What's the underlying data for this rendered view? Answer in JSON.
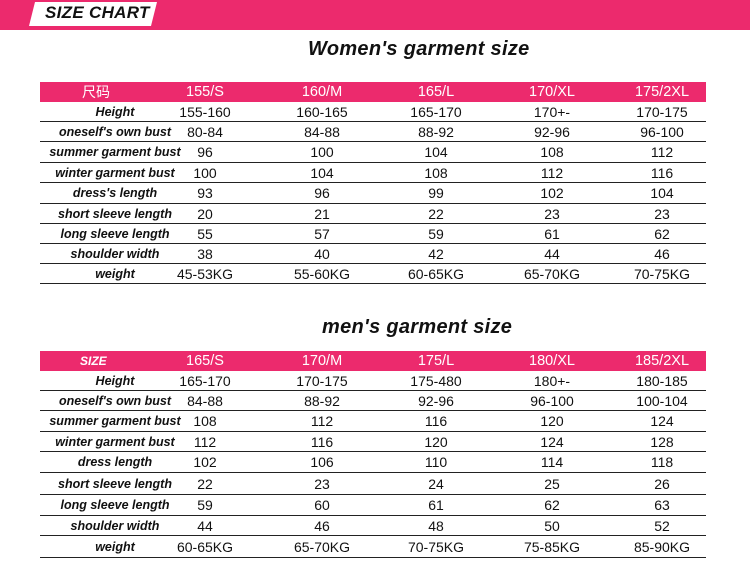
{
  "banner": {
    "title": "SIZE CHART"
  },
  "women": {
    "title": "Women's garment size",
    "header": {
      "label": "尺码",
      "sizes": [
        "155/S",
        "160/M",
        "165/L",
        "170/XL",
        "175/2XL"
      ]
    },
    "rows": [
      {
        "label": "Height",
        "values": [
          "155-160",
          "160-165",
          "165-170",
          "170+-",
          "170-175"
        ]
      },
      {
        "label": "oneself's own bust",
        "values": [
          "80-84",
          "84-88",
          "88-92",
          "92-96",
          "96-100"
        ]
      },
      {
        "label": "summer garment bust",
        "values": [
          "96",
          "100",
          "104",
          "108",
          "112"
        ]
      },
      {
        "label": "winter garment bust",
        "values": [
          "100",
          "104",
          "108",
          "112",
          "116"
        ]
      },
      {
        "label": "dress's length",
        "values": [
          "93",
          "96",
          "99",
          "102",
          "104"
        ]
      },
      {
        "label": "short sleeve length",
        "values": [
          "20",
          "21",
          "22",
          "23",
          "23"
        ]
      },
      {
        "label": "long sleeve length",
        "values": [
          "55",
          "57",
          "59",
          "61",
          "62"
        ]
      },
      {
        "label": "shoulder width",
        "values": [
          "38",
          "40",
          "42",
          "44",
          "46"
        ]
      },
      {
        "label": "weight",
        "values": [
          "45-53KG",
          "55-60KG",
          "60-65KG",
          "65-70KG",
          "70-75KG"
        ]
      }
    ]
  },
  "men": {
    "title": "men's garment size",
    "header": {
      "label": "SIZE",
      "sizes": [
        "165/S",
        "170/M",
        "175/L",
        "180/XL",
        "185/2XL"
      ]
    },
    "rows": [
      {
        "label": "Height",
        "values": [
          "165-170",
          "170-175",
          "175-480",
          "180+-",
          "180-185"
        ]
      },
      {
        "label": "oneself's own bust",
        "values": [
          "84-88",
          "88-92",
          "92-96",
          "96-100",
          "100-104"
        ]
      },
      {
        "label": "summer garment bust",
        "values": [
          "108",
          "112",
          "116",
          "120",
          "124"
        ]
      },
      {
        "label": "winter garment bust",
        "values": [
          "112",
          "116",
          "120",
          "124",
          "128"
        ]
      },
      {
        "label": "dress length",
        "values": [
          "102",
          "106",
          "110",
          "114",
          "118"
        ]
      },
      {
        "label": "short sleeve length",
        "values": [
          "22",
          "23",
          "24",
          "25",
          "26"
        ]
      },
      {
        "label": "long sleeve length",
        "values": [
          "59",
          "60",
          "61",
          "62",
          "63"
        ]
      },
      {
        "label": "shoulder width",
        "values": [
          "44",
          "46",
          "48",
          "50",
          "52"
        ]
      },
      {
        "label": "weight",
        "values": [
          "60-65KG",
          "65-70KG",
          "70-75KG",
          "75-85KG",
          "85-90KG"
        ]
      }
    ]
  }
}
